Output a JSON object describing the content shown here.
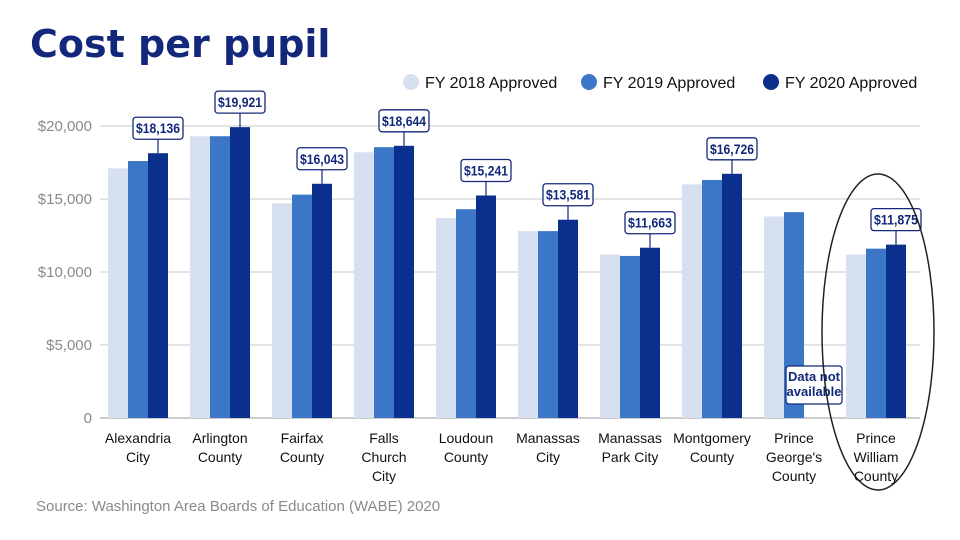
{
  "chart_data": {
    "type": "bar",
    "title": "Cost per pupil",
    "source": "Source: Washington Area Boards of Education (WABE) 2020",
    "ylim": [
      0,
      20000
    ],
    "yticks": [
      0,
      5000,
      10000,
      15000,
      20000
    ],
    "ytick_labels": [
      "0",
      "$5,000",
      "$10,000",
      "$15,000",
      "$20,000"
    ],
    "grid": true,
    "legend_position": "top-right",
    "categories": [
      "Alexandria City",
      "Arlington County",
      "Fairfax County",
      "Falls Church City",
      "Loudoun County",
      "Manassas City",
      "Manassas Park City",
      "Montgomery County",
      "Prince George's County",
      "Prince William County"
    ],
    "category_lines": [
      [
        "Alexandria",
        "City"
      ],
      [
        "Arlington",
        "County"
      ],
      [
        "Fairfax",
        "County"
      ],
      [
        "Falls",
        "Church",
        "City"
      ],
      [
        "Loudoun",
        "County"
      ],
      [
        "Manassas",
        "City"
      ],
      [
        "Manassas",
        "Park City"
      ],
      [
        "Montgomery",
        "County"
      ],
      [
        "Prince",
        "George's",
        "County"
      ],
      [
        "Prince",
        "William",
        "County"
      ]
    ],
    "series": [
      {
        "name": "FY 2018 Approved",
        "color": "#d6e0f0",
        "values": [
          17100,
          19300,
          14700,
          18200,
          13700,
          12800,
          11200,
          16000,
          13800,
          11200
        ]
      },
      {
        "name": "FY 2019 Approved",
        "color": "#3b76c7",
        "values": [
          17600,
          19300,
          15300,
          18550,
          14300,
          12800,
          11100,
          16300,
          14100,
          11600
        ]
      },
      {
        "name": "FY 2020 Approved",
        "color": "#0a2f8c",
        "values": [
          18136,
          19921,
          16043,
          18644,
          15241,
          13581,
          11663,
          16726,
          null,
          11875
        ]
      }
    ],
    "data_labels": [
      "$18,136",
      "$19,921",
      "$16,043",
      "$18,644",
      "$15,241",
      "$13,581",
      "$11,663",
      "$16,726",
      null,
      "$11,875"
    ],
    "note": {
      "category_index": 8,
      "lines": [
        "Data not",
        "available"
      ]
    },
    "highlighted_category_index": 9
  }
}
